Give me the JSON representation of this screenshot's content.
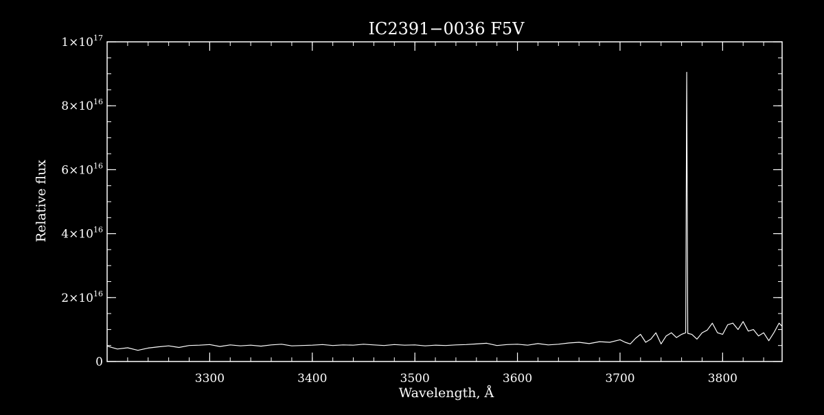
{
  "chart_data": {
    "type": "line",
    "title": "IC2391−0036   F5V",
    "xlabel": "Wavelength, Å",
    "ylabel": "Relative flux",
    "xlim": [
      3200,
      3858
    ],
    "ylim": [
      0,
      1e+17
    ],
    "x_ticks": [
      3300,
      3400,
      3500,
      3600,
      3700,
      3800
    ],
    "x_tick_labels": [
      "3300",
      "3400",
      "3500",
      "3600",
      "3700",
      "3800"
    ],
    "y_ticks": [
      0,
      2e+16,
      4e+16,
      6e+16,
      8e+16,
      1e+17
    ],
    "y_tick_labels": [
      {
        "mantissa": "0",
        "exponent": ""
      },
      {
        "mantissa": "2×10",
        "exponent": "16"
      },
      {
        "mantissa": "4×10",
        "exponent": "16"
      },
      {
        "mantissa": "6×10",
        "exponent": "16"
      },
      {
        "mantissa": "8×10",
        "exponent": "16"
      },
      {
        "mantissa": "1×10",
        "exponent": "17"
      }
    ],
    "x_minor_step": 20,
    "y_minor_step": 5000000000000000.0,
    "grid": false,
    "background": "#000000",
    "line_color": "#ffffff",
    "series": [
      {
        "x": [
          3200,
          3210,
          3220,
          3230,
          3240,
          3250,
          3260,
          3270,
          3280,
          3290,
          3300,
          3310,
          3320,
          3330,
          3340,
          3350,
          3360,
          3370,
          3380,
          3390,
          3400,
          3410,
          3420,
          3430,
          3440,
          3450,
          3460,
          3470,
          3480,
          3490,
          3500,
          3510,
          3520,
          3530,
          3540,
          3550,
          3560,
          3570,
          3580,
          3590,
          3600,
          3610,
          3620,
          3630,
          3640,
          3650,
          3660,
          3670,
          3680,
          3690,
          3700,
          3705,
          3710,
          3715,
          3720,
          3725,
          3730,
          3735,
          3740,
          3745,
          3750,
          3755,
          3760,
          3764,
          3765,
          3766,
          3770,
          3775,
          3780,
          3785,
          3790,
          3795,
          3800,
          3805,
          3810,
          3815,
          3820,
          3825,
          3830,
          3835,
          3840,
          3845,
          3850,
          3855,
          3858
        ],
        "y": [
          4800000000000000.0,
          3900000000000000.0,
          4300000000000000.0,
          3500000000000000.0,
          4200000000000000.0,
          4600000000000000.0,
          4900000000000000.0,
          4400000000000000.0,
          5000000000000000.0,
          5100000000000000.0,
          5300000000000000.0,
          4700000000000000.0,
          5200000000000000.0,
          4900000000000000.0,
          5100000000000000.0,
          4800000000000000.0,
          5200000000000000.0,
          5400000000000000.0,
          4900000000000000.0,
          5000000000000000.0,
          5100000000000000.0,
          5300000000000000.0,
          5000000000000000.0,
          5200000000000000.0,
          5100000000000000.0,
          5400000000000000.0,
          5200000000000000.0,
          5000000000000000.0,
          5300000000000000.0,
          5100000000000000.0,
          5200000000000000.0,
          4900000000000000.0,
          5100000000000000.0,
          5000000000000000.0,
          5200000000000000.0,
          5300000000000000.0,
          5500000000000000.0,
          5700000000000000.0,
          5000000000000000.0,
          5300000000000000.0,
          5400000000000000.0,
          5100000000000000.0,
          5600000000000000.0,
          5200000000000000.0,
          5400000000000000.0,
          5800000000000000.0,
          6000000000000000.0,
          5600000000000000.0,
          6200000000000000.0,
          6000000000000000.0,
          6800000000000000.0,
          6000000000000000.0,
          5500000000000000.0,
          7200000000000000.0,
          8500000000000000.0,
          6000000000000000.0,
          7000000000000000.0,
          9000000000000000.0,
          5500000000000000.0,
          8000000000000000.0,
          9000000000000000.0,
          7500000000000000.0,
          8500000000000000.0,
          9000000000000000.0,
          9.05e+16,
          8800000000000000.0,
          8500000000000000.0,
          7000000000000000.0,
          9000000000000000.0,
          9800000000000000.0,
          1.2e+16,
          9000000000000000.0,
          8500000000000000.0,
          1.15e+16,
          1.2e+16,
          1e+16,
          1.25e+16,
          9500000000000000.0,
          1e+16,
          8000000000000000.0,
          9000000000000000.0,
          6500000000000000.0,
          9000000000000000.0,
          1.2e+16,
          1.1e+16
        ]
      }
    ]
  }
}
